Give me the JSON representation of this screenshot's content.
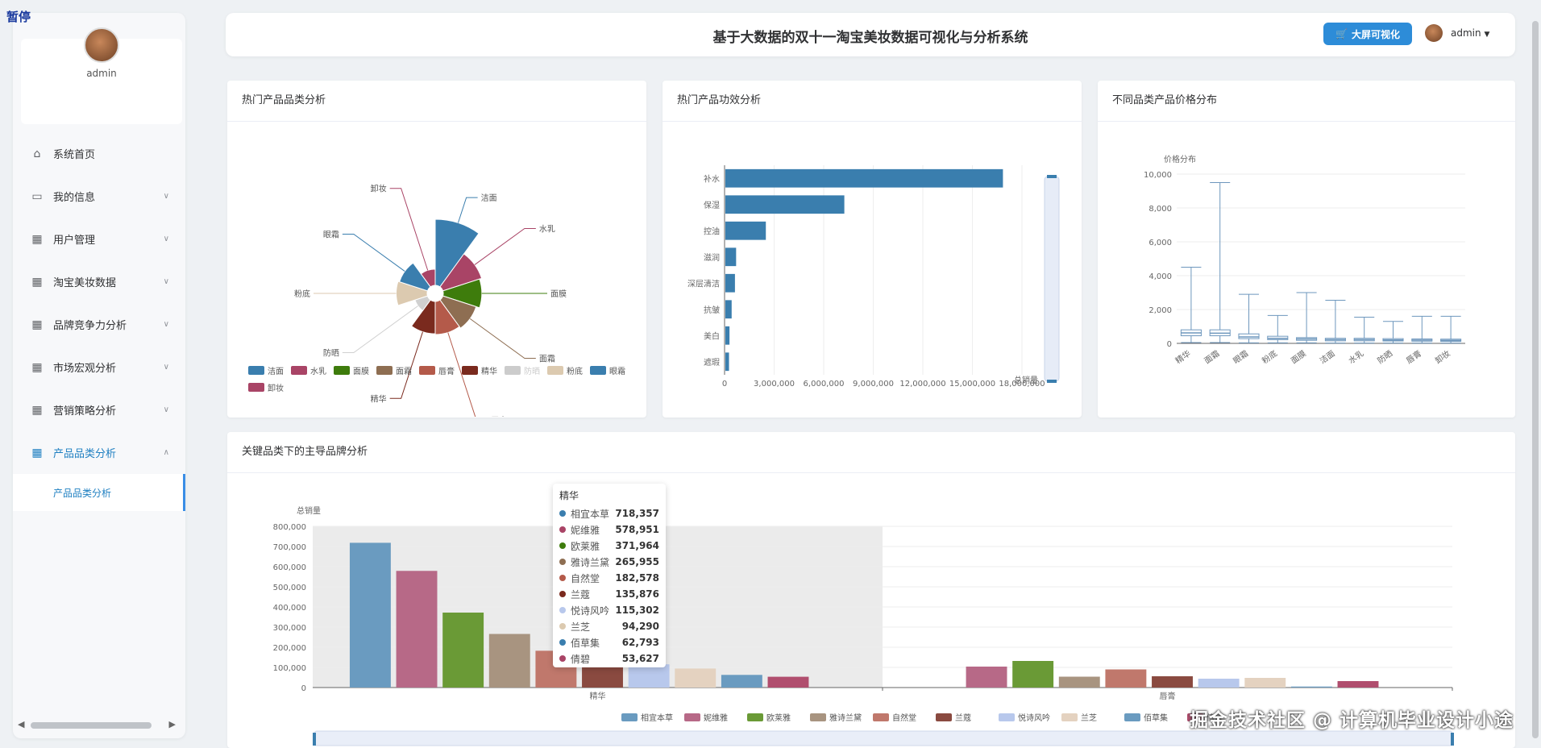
{
  "pause_label": "暂停",
  "sidebar": {
    "profile_name": "admin",
    "items": [
      {
        "label": "系统首页",
        "icon": "home-icon"
      },
      {
        "label": "我的信息",
        "icon": "card-icon"
      },
      {
        "label": "用户管理",
        "icon": "grid-icon"
      },
      {
        "label": "淘宝美妆数据",
        "icon": "grid-icon"
      },
      {
        "label": "品牌竞争力分析",
        "icon": "grid-icon"
      },
      {
        "label": "市场宏观分析",
        "icon": "grid-icon"
      },
      {
        "label": "营销策略分析",
        "icon": "grid-icon"
      },
      {
        "label": "产品品类分析",
        "icon": "grid-icon"
      }
    ],
    "sub_item": "产品品类分析"
  },
  "header": {
    "title": "基于大数据的双十一淘宝美妆数据可视化与分析系统",
    "bigscreen_button": "大屏可视化",
    "username": "admin"
  },
  "panels": {
    "category_title": "热门产品品类分析",
    "effect_title": "热门产品功效分析",
    "price_title": "不同品类产品价格分布",
    "brand_title": "关键品类下的主导品牌分析"
  },
  "watermark": "掘金技术社区 @ 计算机毕业设计小途",
  "colors": {
    "accent": "#2d8cd8",
    "bar_blue": "#3a7eae"
  },
  "chart_data": [
    {
      "type": "pie",
      "variant": "rose",
      "categories": [
        "洁面",
        "水乳",
        "面膜",
        "面霜",
        "唇膏",
        "精华",
        "防晒",
        "粉底",
        "眼霜",
        "卸妆"
      ],
      "values": [
        100,
        38,
        34,
        28,
        25,
        24,
        4,
        22,
        20,
        6
      ],
      "legend_disabled": [
        "防晒"
      ],
      "colors": [
        "#3a7eae",
        "#a94466",
        "#3e7c0c",
        "#8e6e52",
        "#b45a4a",
        "#7a2a1e",
        "#d0d0d0",
        "#dccab0",
        "#3a7eae",
        "#a94466"
      ],
      "legend": "bottom"
    },
    {
      "type": "bar",
      "orientation": "horizontal",
      "categories": [
        "补水",
        "保湿",
        "控油",
        "滋润",
        "深层清洁",
        "抗皱",
        "美白",
        "遮瑕"
      ],
      "values": [
        16800000,
        7200000,
        2450000,
        650000,
        580000,
        380000,
        250000,
        220000
      ],
      "xlabel": "总销量",
      "xlim": [
        0,
        18000000
      ],
      "xticks": [
        "0",
        "3,000,000",
        "6,000,000",
        "9,000,000",
        "12,000,000",
        "15,000,000",
        "18,000,000"
      ]
    },
    {
      "type": "boxplot",
      "ylabel": "价格分布",
      "ylim": [
        0,
        10000
      ],
      "yticks": [
        "0",
        "2,000",
        "4,000",
        "6,000",
        "8,000",
        "10,000"
      ],
      "categories": [
        "精华",
        "面霜",
        "眼霜",
        "粉底",
        "面膜",
        "洁面",
        "水乳",
        "防晒",
        "唇膏",
        "卸妆"
      ],
      "boxes": [
        [
          50,
          450,
          620,
          800,
          4500
        ],
        [
          50,
          450,
          600,
          800,
          9500
        ],
        [
          30,
          280,
          380,
          560,
          2900
        ],
        [
          30,
          220,
          300,
          420,
          1650
        ],
        [
          30,
          180,
          260,
          340,
          3000
        ],
        [
          20,
          150,
          220,
          300,
          2550
        ],
        [
          20,
          150,
          220,
          300,
          1550
        ],
        [
          20,
          140,
          200,
          280,
          1300
        ],
        [
          20,
          130,
          190,
          260,
          1600
        ],
        [
          20,
          120,
          180,
          250,
          1600
        ]
      ]
    },
    {
      "type": "bar",
      "categories": [
        "精华",
        "唇膏"
      ],
      "ylabel": "总销量",
      "ylim": [
        0,
        800000
      ],
      "yticks": [
        "0",
        "100,000",
        "200,000",
        "300,000",
        "400,000",
        "500,000",
        "600,000",
        "700,000",
        "800,000"
      ],
      "series": [
        {
          "name": "相宜本草",
          "color": "#6a9bc0",
          "values": [
            718357,
            0
          ]
        },
        {
          "name": "妮维雅",
          "color": "#b76987",
          "values": [
            578951,
            104000
          ]
        },
        {
          "name": "欧莱雅",
          "color": "#6a9a36",
          "values": [
            371964,
            132000
          ]
        },
        {
          "name": "雅诗兰黛",
          "color": "#a89480",
          "values": [
            265955,
            54000
          ]
        },
        {
          "name": "自然堂",
          "color": "#c0786c",
          "values": [
            182578,
            90000
          ]
        },
        {
          "name": "兰蔻",
          "color": "#8a4a40",
          "values": [
            135876,
            56000
          ]
        },
        {
          "name": "悦诗风吟",
          "color": "#b8c8ec",
          "values": [
            115302,
            44000
          ]
        },
        {
          "name": "兰芝",
          "color": "#e4d2c0",
          "values": [
            94290,
            48000
          ]
        },
        {
          "name": "佰草集",
          "color": "#6a9bc0",
          "values": [
            62793,
            5000
          ]
        },
        {
          "name": "倩碧",
          "color": "#b04e6e",
          "values": [
            53627,
            32000
          ]
        }
      ],
      "legend": "bottom",
      "highlight_category": "精华",
      "tooltip": {
        "title": "精华",
        "rows": [
          {
            "name": "相宜本草",
            "value": "718,357",
            "color": "#3a7eae"
          },
          {
            "name": "妮维雅",
            "value": "578,951",
            "color": "#a94466"
          },
          {
            "name": "欧莱雅",
            "value": "371,964",
            "color": "#3e7c0c"
          },
          {
            "name": "雅诗兰黛",
            "value": "265,955",
            "color": "#8e6e52"
          },
          {
            "name": "自然堂",
            "value": "182,578",
            "color": "#b45a4a"
          },
          {
            "name": "兰蔻",
            "value": "135,876",
            "color": "#7a2a1e"
          },
          {
            "name": "悦诗风吟",
            "value": "115,302",
            "color": "#b8c8ec"
          },
          {
            "name": "兰芝",
            "value": "94,290",
            "color": "#dccab0"
          },
          {
            "name": "佰草集",
            "value": "62,793",
            "color": "#3a7eae"
          },
          {
            "name": "倩碧",
            "value": "53,627",
            "color": "#a94466"
          }
        ]
      }
    }
  ]
}
